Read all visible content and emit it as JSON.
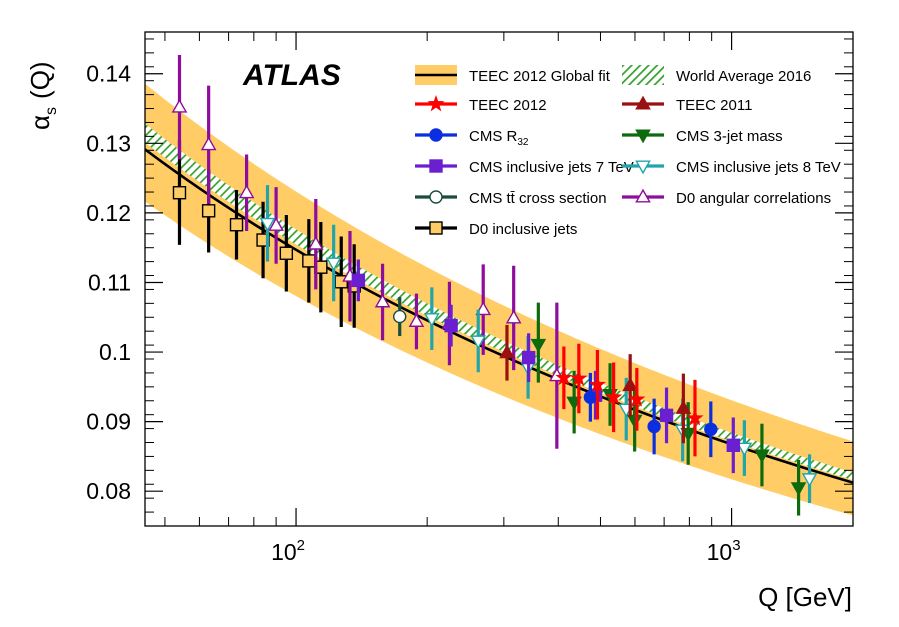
{
  "chart_data": {
    "type": "scatter",
    "title": "",
    "experiment_label": "ATLAS",
    "xlabel": "Q [GeV]",
    "ylabel": "α_s (Q)",
    "ylabel_main": "α",
    "ylabel_sub": "s",
    "ylabel_tail": "(Q)",
    "xscale": "log",
    "xlim": [
      45,
      1900
    ],
    "ylim": [
      0.075,
      0.146
    ],
    "yticks": [
      "0.08",
      "0.09",
      "0.1",
      "0.11",
      "0.12",
      "0.13",
      "0.14"
    ],
    "ytick_values": [
      0.08,
      0.09,
      0.1,
      0.11,
      0.12,
      0.13,
      0.14
    ],
    "xticks_major": [
      {
        "value": 100,
        "base": "10",
        "exp": "2"
      },
      {
        "value": 1000,
        "base": "10",
        "exp": "3"
      }
    ],
    "legend_placement": "top-right",
    "legend": [
      {
        "id": "fit",
        "label": "TEEC 2012 Global fit"
      },
      {
        "id": "wa",
        "label": "World Average 2016"
      },
      {
        "id": "teec2012",
        "label": "TEEC 2012"
      },
      {
        "id": "teec2011",
        "label": "TEEC 2011"
      },
      {
        "id": "cmsr32",
        "label": "CMS R",
        "sub": "32"
      },
      {
        "id": "cms3jet",
        "label": "CMS 3-jet mass"
      },
      {
        "id": "cmsinc7",
        "label": "CMS inclusive jets 7 TeV"
      },
      {
        "id": "cmsinc8",
        "label": "CMS inclusive jets 8 TeV"
      },
      {
        "id": "cmstt",
        "label": "CMS tt̄ cross section"
      },
      {
        "id": "d0ang",
        "label": "D0 angular correlations"
      },
      {
        "id": "d0inc",
        "label": "D0 inclusive jets"
      }
    ],
    "fit_curve": {
      "alpha_mz": 0.1162,
      "band_rel_low": 0.058,
      "band_rel_high": 0.073,
      "color": "#000000",
      "band_color": "#FFCC66"
    },
    "world_average": {
      "alpha_mz": 0.1181,
      "uncertainty": 0.0011,
      "color": "#33a02c"
    },
    "series": [
      {
        "id": "d0inc",
        "marker": "square-open",
        "color": "#000000",
        "fill": "#FFCC66",
        "points": [
          {
            "x": 54,
            "y": 0.1229,
            "lo": 0.0075,
            "hi": 0.0075
          },
          {
            "x": 63,
            "y": 0.1203,
            "lo": 0.006,
            "hi": 0.006
          },
          {
            "x": 73,
            "y": 0.1183,
            "lo": 0.005,
            "hi": 0.005
          },
          {
            "x": 84,
            "y": 0.1161,
            "lo": 0.0055,
            "hi": 0.0055
          },
          {
            "x": 95,
            "y": 0.1142,
            "lo": 0.0055,
            "hi": 0.0055
          },
          {
            "x": 107,
            "y": 0.1131,
            "lo": 0.006,
            "hi": 0.006
          },
          {
            "x": 114,
            "y": 0.1122,
            "lo": 0.0065,
            "hi": 0.0065
          },
          {
            "x": 127,
            "y": 0.1101,
            "lo": 0.0065,
            "hi": 0.0065
          },
          {
            "x": 136,
            "y": 0.1095,
            "lo": 0.006,
            "hi": 0.006
          }
        ]
      },
      {
        "id": "d0ang",
        "marker": "triangle-up-open",
        "color": "#8E0C9E",
        "points": [
          {
            "x": 54,
            "y": 0.1352,
            "lo": 0.0075,
            "hi": 0.0075
          },
          {
            "x": 63,
            "y": 0.1298,
            "lo": 0.0085,
            "hi": 0.0085
          },
          {
            "x": 77,
            "y": 0.1229,
            "lo": 0.0055,
            "hi": 0.0055
          },
          {
            "x": 90,
            "y": 0.1182,
            "lo": 0.0055,
            "hi": 0.0055
          },
          {
            "x": 111,
            "y": 0.1155,
            "lo": 0.0065,
            "hi": 0.0065
          },
          {
            "x": 133,
            "y": 0.1109,
            "lo": 0.0065,
            "hi": 0.0065
          },
          {
            "x": 158,
            "y": 0.1072,
            "lo": 0.0055,
            "hi": 0.0055
          },
          {
            "x": 189,
            "y": 0.1044,
            "lo": 0.004,
            "hi": 0.004
          },
          {
            "x": 225,
            "y": 0.1041,
            "lo": 0.006,
            "hi": 0.006
          },
          {
            "x": 269,
            "y": 0.1061,
            "lo": 0.0065,
            "hi": 0.0065
          },
          {
            "x": 316,
            "y": 0.1049,
            "lo": 0.0075,
            "hi": 0.0075
          },
          {
            "x": 397,
            "y": 0.0966,
            "lo": 0.0105,
            "hi": 0.0105
          }
        ]
      },
      {
        "id": "cmstt",
        "marker": "circle-open",
        "color": "#1a4d3e",
        "points": [
          {
            "x": 173,
            "y": 0.1051,
            "lo": 0.0028,
            "hi": 0.0028
          }
        ]
      },
      {
        "id": "cmsinc8",
        "marker": "triangle-down-open",
        "color": "#22A5AA",
        "points": [
          {
            "x": 86,
            "y": 0.1185,
            "lo": 0.0055,
            "hi": 0.0055
          },
          {
            "x": 122,
            "y": 0.1128,
            "lo": 0.0055,
            "hi": 0.0055
          },
          {
            "x": 205,
            "y": 0.1048,
            "lo": 0.0045,
            "hi": 0.0045
          },
          {
            "x": 262,
            "y": 0.1016,
            "lo": 0.0045,
            "hi": 0.0045
          },
          {
            "x": 341,
            "y": 0.0978,
            "lo": 0.0045,
            "hi": 0.0045
          },
          {
            "x": 573,
            "y": 0.0918,
            "lo": 0.0045,
            "hi": 0.0045
          },
          {
            "x": 772,
            "y": 0.0888,
            "lo": 0.0045,
            "hi": 0.0045
          },
          {
            "x": 1070,
            "y": 0.0862,
            "lo": 0.004,
            "hi": 0.004
          },
          {
            "x": 1510,
            "y": 0.0818,
            "lo": 0.0035,
            "hi": 0.0035
          }
        ]
      },
      {
        "id": "cmsinc7",
        "marker": "square-filled",
        "color": "#6A1FD1",
        "points": [
          {
            "x": 139,
            "y": 0.1103,
            "lo": 0.003,
            "hi": 0.003
          },
          {
            "x": 227,
            "y": 0.1038,
            "lo": 0.003,
            "hi": 0.003
          },
          {
            "x": 342,
            "y": 0.0992,
            "lo": 0.0035,
            "hi": 0.0035
          },
          {
            "x": 487,
            "y": 0.0938,
            "lo": 0.0035,
            "hi": 0.0035
          },
          {
            "x": 709,
            "y": 0.0909,
            "lo": 0.004,
            "hi": 0.004
          },
          {
            "x": 1009,
            "y": 0.0866,
            "lo": 0.004,
            "hi": 0.004
          }
        ]
      },
      {
        "id": "cms3jet",
        "marker": "triangle-down-filled",
        "color": "#0d6b0d",
        "points": [
          {
            "x": 360,
            "y": 0.1011,
            "lo": 0.0055,
            "hi": 0.006
          },
          {
            "x": 435,
            "y": 0.0928,
            "lo": 0.0045,
            "hi": 0.0045
          },
          {
            "x": 526,
            "y": 0.0939,
            "lo": 0.0045,
            "hi": 0.0045
          },
          {
            "x": 599,
            "y": 0.0902,
            "lo": 0.0045,
            "hi": 0.0045
          },
          {
            "x": 795,
            "y": 0.0883,
            "lo": 0.0045,
            "hi": 0.0045
          },
          {
            "x": 1174,
            "y": 0.0852,
            "lo": 0.0045,
            "hi": 0.0045
          },
          {
            "x": 1425,
            "y": 0.0805,
            "lo": 0.004,
            "hi": 0.004
          }
        ]
      },
      {
        "id": "cmsr32",
        "marker": "circle-filled",
        "color": "#0a2ee0",
        "points": [
          {
            "x": 474,
            "y": 0.0935,
            "lo": 0.0035,
            "hi": 0.0035
          },
          {
            "x": 664,
            "y": 0.0893,
            "lo": 0.004,
            "hi": 0.004
          },
          {
            "x": 896,
            "y": 0.0889,
            "lo": 0.004,
            "hi": 0.004
          }
        ]
      },
      {
        "id": "teec2011",
        "marker": "triangle-up-filled",
        "color": "#9B1010",
        "points": [
          {
            "x": 305,
            "y": 0.0999,
            "lo": 0.004,
            "hi": 0.004
          },
          {
            "x": 585,
            "y": 0.0952,
            "lo": 0.0045,
            "hi": 0.0045
          },
          {
            "x": 775,
            "y": 0.0919,
            "lo": 0.005,
            "hi": 0.005
          }
        ]
      },
      {
        "id": "teec2012",
        "marker": "star",
        "color": "#ff0000",
        "points": [
          {
            "x": 412,
            "y": 0.0963,
            "lo": 0.0045,
            "hi": 0.0045
          },
          {
            "x": 446,
            "y": 0.0962,
            "lo": 0.005,
            "hi": 0.005
          },
          {
            "x": 492,
            "y": 0.0953,
            "lo": 0.005,
            "hi": 0.005
          },
          {
            "x": 536,
            "y": 0.0935,
            "lo": 0.005,
            "hi": 0.005
          },
          {
            "x": 606,
            "y": 0.0932,
            "lo": 0.0045,
            "hi": 0.0045
          },
          {
            "x": 824,
            "y": 0.0905,
            "lo": 0.0055,
            "hi": 0.0055
          }
        ]
      }
    ]
  }
}
